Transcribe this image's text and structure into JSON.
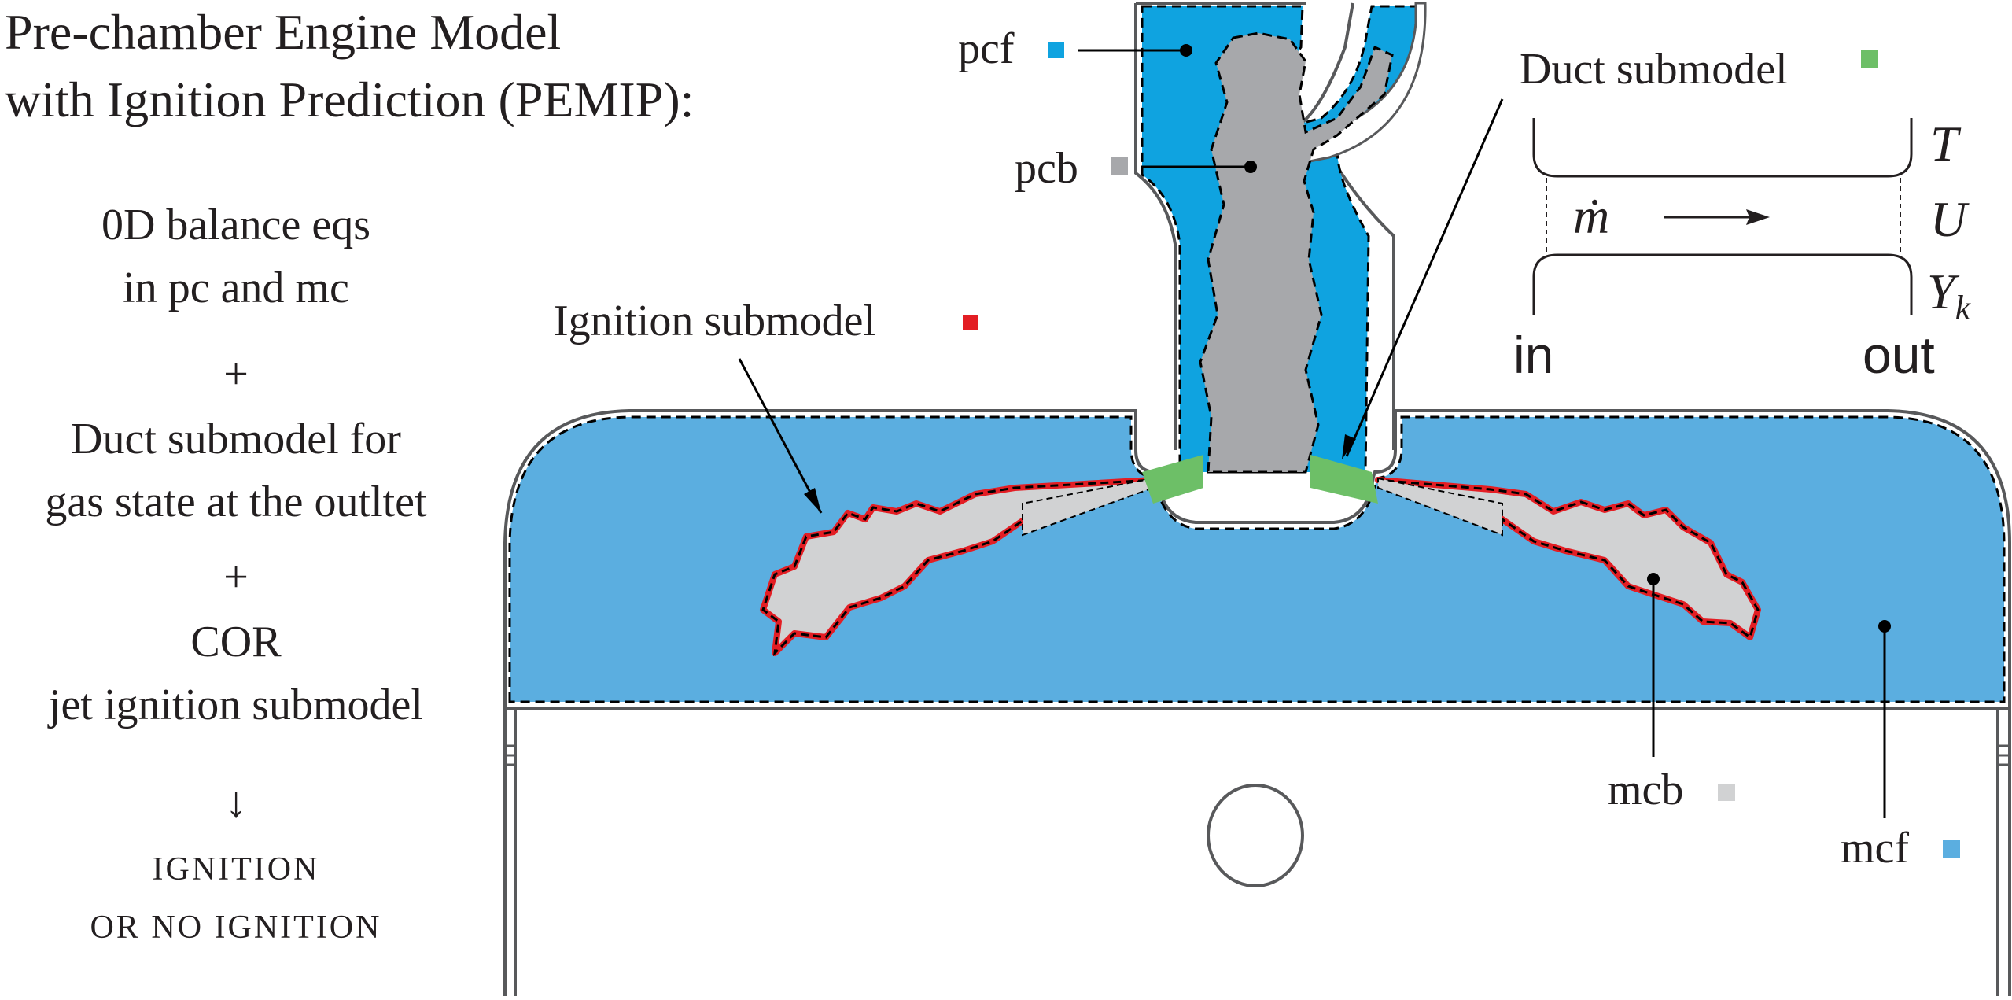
{
  "title": {
    "line1": "Pre-chamber Engine Model",
    "line2": "with Ignition Prediction (PEMIP):"
  },
  "steps": {
    "s1a": "0D balance eqs",
    "s1b": "in pc and mc",
    "plus1": "+",
    "s2a": "Duct submodel for",
    "s2b": "gas state at the outltet",
    "plus2": "+",
    "s3a": "COR",
    "s3b": "jet ignition submodel",
    "arrow": "↓",
    "result1": "IGNITION",
    "result2": "OR NO IGNITION"
  },
  "labels": {
    "pcf": "pcf",
    "pcb": "pcb",
    "ignition": "Ignition submodel",
    "duct": "Duct submodel",
    "mcb": "mcb",
    "mcf": "mcf"
  },
  "duct_schematic": {
    "mdot": "ṁ",
    "T": "T",
    "U": "U",
    "Y": "Y",
    "Y_sub": "k",
    "in": "in",
    "out": "out"
  },
  "colors": {
    "pcf": "#0fa3e0",
    "pcb": "#a7a8ab",
    "mcf": "#5baee0",
    "mcb": "#d1d2d3",
    "ignition": "#e31e24",
    "duct": "#6dbf67",
    "outline": "#58595b"
  }
}
